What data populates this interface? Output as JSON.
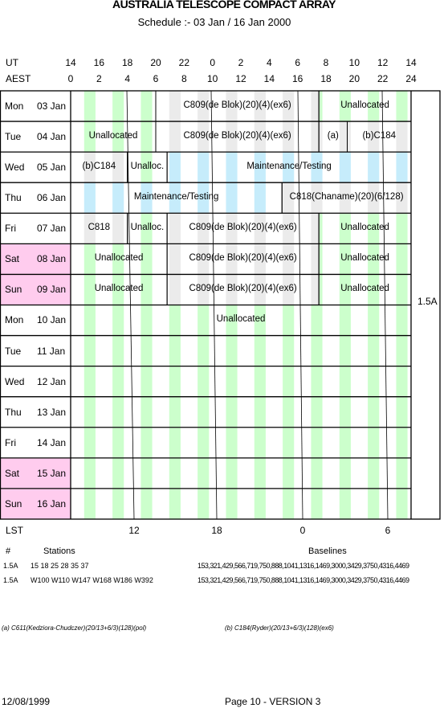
{
  "title": "AUSTRALIA TELESCOPE COMPACT ARRAY",
  "subtitle": "Schedule :- 03 Jan / 16 Jan 2000",
  "ut_label": "UT",
  "aest_label": "AEST",
  "ut_ticks": [
    "14",
    "16",
    "18",
    "20",
    "22",
    "0",
    "2",
    "4",
    "6",
    "8",
    "10",
    "12",
    "14"
  ],
  "aest_ticks": [
    "0",
    "2",
    "4",
    "6",
    "8",
    "10",
    "12",
    "14",
    "16",
    "18",
    "20",
    "22",
    "24"
  ],
  "config_label": "1.5A",
  "days": [
    {
      "day": "Mon",
      "date": "03 Jan",
      "weekend": false
    },
    {
      "day": "Tue",
      "date": "04 Jan",
      "weekend": false
    },
    {
      "day": "Wed",
      "date": "05 Jan",
      "weekend": false
    },
    {
      "day": "Thu",
      "date": "06 Jan",
      "weekend": false
    },
    {
      "day": "Fri",
      "date": "07 Jan",
      "weekend": false
    },
    {
      "day": "Sat",
      "date": "08 Jan",
      "weekend": true
    },
    {
      "day": "Sun",
      "date": "09 Jan",
      "weekend": true
    },
    {
      "day": "Mon",
      "date": "10 Jan",
      "weekend": false
    },
    {
      "day": "Tue",
      "date": "11 Jan",
      "weekend": false
    },
    {
      "day": "Wed",
      "date": "12 Jan",
      "weekend": false
    },
    {
      "day": "Thu",
      "date": "13 Jan",
      "weekend": false
    },
    {
      "day": "Fri",
      "date": "14 Jan",
      "weekend": false
    },
    {
      "day": "Sat",
      "date": "15 Jan",
      "weekend": true
    },
    {
      "day": "Sun",
      "date": "16 Jan",
      "weekend": true
    }
  ],
  "blocks": [
    {
      "row": 0,
      "start": 0,
      "end": 6,
      "label": "",
      "shade": "green"
    },
    {
      "row": 0,
      "start": 6,
      "end": 17.5,
      "label": "C809(de Blok)(20)(4)(ex6)",
      "shade": "grey"
    },
    {
      "row": 0,
      "start": 17.5,
      "end": 24,
      "label": "Unallocated",
      "shade": "green"
    },
    {
      "row": 1,
      "start": 0,
      "end": 6,
      "label": "Unallocated",
      "shade": "green"
    },
    {
      "row": 1,
      "start": 6,
      "end": 17.5,
      "label": "C809(de Blok)(20)(4)(ex6)",
      "shade": "grey"
    },
    {
      "row": 1,
      "start": 17.5,
      "end": 19.5,
      "label": "(a)",
      "shade": "grey"
    },
    {
      "row": 1,
      "start": 19.5,
      "end": 24,
      "label": "(b)C184",
      "shade": "grey"
    },
    {
      "row": 2,
      "start": 0,
      "end": 4,
      "label": "(b)C184",
      "shade": "grey"
    },
    {
      "row": 2,
      "start": 4,
      "end": 6.8,
      "label": "Unalloc.",
      "shade": "green"
    },
    {
      "row": 2,
      "start": 6.8,
      "end": 24,
      "label": "Maintenance/Testing",
      "shade": "blue"
    },
    {
      "row": 3,
      "start": 0,
      "end": 14.9,
      "label": "Maintenance/Testing",
      "shade": "blue"
    },
    {
      "row": 3,
      "start": 14.9,
      "end": 24,
      "label": "C818(Chaname)(20)(6/128)",
      "shade": "grey"
    },
    {
      "row": 4,
      "start": 0,
      "end": 4,
      "label": "C818",
      "shade": "grey"
    },
    {
      "row": 4,
      "start": 4,
      "end": 6.8,
      "label": "Unalloc.",
      "shade": "green"
    },
    {
      "row": 4,
      "start": 6.8,
      "end": 17.5,
      "label": "C809(de Blok)(20)(4)(ex6)",
      "shade": "grey"
    },
    {
      "row": 4,
      "start": 17.5,
      "end": 24,
      "label": "Unallocated",
      "shade": "green"
    },
    {
      "row": 5,
      "start": 0,
      "end": 6.8,
      "label": "Unallocated",
      "shade": "green"
    },
    {
      "row": 5,
      "start": 6.8,
      "end": 17.5,
      "label": "C809(de Blok)(20)(4)(ex6)",
      "shade": "grey"
    },
    {
      "row": 5,
      "start": 17.5,
      "end": 24,
      "label": "Unallocated",
      "shade": "green"
    },
    {
      "row": 6,
      "start": 0,
      "end": 6.8,
      "label": "Unallocated",
      "shade": "green"
    },
    {
      "row": 6,
      "start": 6.8,
      "end": 17.5,
      "label": "C809(de Blok)(20)(4)(ex6)",
      "shade": "grey"
    },
    {
      "row": 6,
      "start": 17.5,
      "end": 24,
      "label": "Unallocated",
      "shade": "green"
    },
    {
      "row": 7,
      "start": 0,
      "end": 24,
      "label": "Unallocated",
      "shade": "green"
    },
    {
      "row": 8,
      "start": 0,
      "end": 24,
      "label": "",
      "shade": "green"
    },
    {
      "row": 9,
      "start": 0,
      "end": 24,
      "label": "",
      "shade": "green"
    },
    {
      "row": 10,
      "start": 0,
      "end": 24,
      "label": "",
      "shade": "green"
    },
    {
      "row": 11,
      "start": 0,
      "end": 24,
      "label": "",
      "shade": "green"
    },
    {
      "row": 12,
      "start": 0,
      "end": 24,
      "label": "",
      "shade": "green"
    },
    {
      "row": 13,
      "start": 0,
      "end": 24,
      "label": "",
      "shade": "green"
    }
  ],
  "lst_label": "LST",
  "lst_ticks": [
    "12",
    "18",
    "0",
    "6"
  ],
  "stations": {
    "hash_label": "#",
    "stations_label": "Stations",
    "baselines_label": "Baselines",
    "rows": [
      {
        "config": "1.5A",
        "stations": "15 18 25 28 35 37",
        "baselines": "153,321,429,566,719,750,888,1041,1316,1469,3000,3429,3750,4316,4469"
      },
      {
        "config": "1.5A",
        "stations": "W100 W110 W147 W168 W186 W392",
        "baselines": "153,321,429,566,719,750,888,1041,1316,1469,3000,3429,3750,4316,4469"
      }
    ]
  },
  "footnote_a": "(a) C611(Kedziora-Chudczer)(20/13+6/3)(128)(pol)",
  "footnote_b": "(b) C184(Ryder)(20/13+6/3)(128)(ex6)",
  "footer_date": "12/08/1999",
  "footer_page": "Page 10 - VERSION 3",
  "colors": {
    "green": "#ccffcc",
    "grey": "#ebebeb",
    "blue": "#c6ecfb",
    "weekend": "#ffccee"
  }
}
